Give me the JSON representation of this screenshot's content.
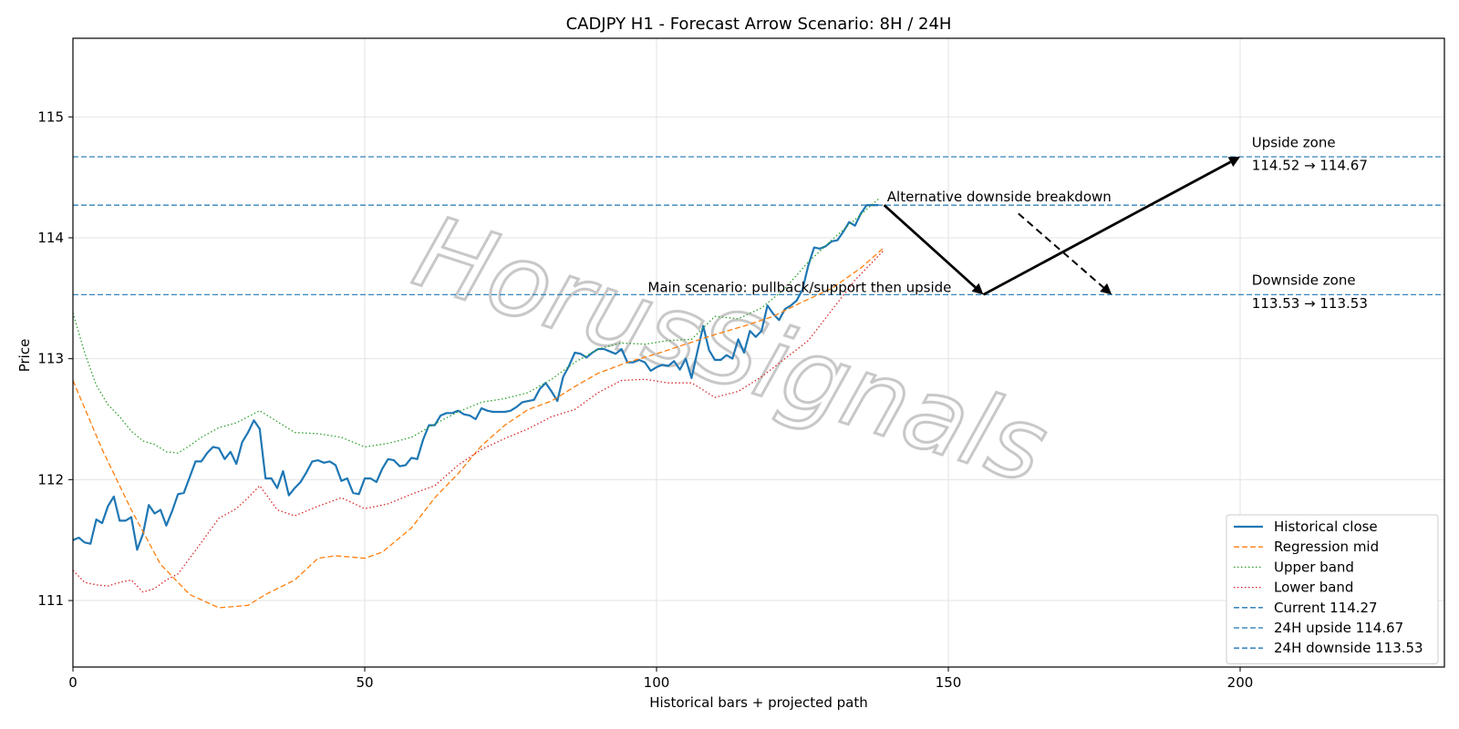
{
  "chart_data": {
    "type": "line",
    "title": "CADJPY H1 - Forecast Arrow Scenario: 8H / 24H",
    "xlabel": "Historical bars + projected path",
    "ylabel": "Price",
    "xlim": [
      0,
      235
    ],
    "ylim": [
      110.45,
      115.65
    ],
    "xticks": [
      0,
      50,
      100,
      150,
      200
    ],
    "yticks": [
      111,
      112,
      113,
      114,
      115
    ],
    "grid": true,
    "legend_position": "lower right",
    "watermark": "HorusSignals",
    "series": [
      {
        "name": "Historical close",
        "style": "solid",
        "color": "#1f77b4",
        "x": [
          0,
          1,
          2,
          3,
          4,
          5,
          6,
          7,
          8,
          9,
          10,
          11,
          12,
          13,
          14,
          15,
          16,
          17,
          18,
          19,
          20,
          21,
          22,
          23,
          24,
          25,
          26,
          27,
          28,
          29,
          30,
          31,
          32,
          33,
          34,
          35,
          36,
          37,
          38,
          39,
          40,
          41,
          42,
          43,
          44,
          45,
          46,
          47,
          48,
          49,
          50,
          51,
          52,
          53,
          54,
          55,
          56,
          57,
          58,
          59,
          60,
          61,
          62,
          63,
          64,
          65,
          66,
          67,
          68,
          69,
          70,
          71,
          72,
          73,
          74,
          75,
          76,
          77,
          78,
          79,
          80,
          81,
          82,
          83,
          84,
          85,
          86,
          87,
          88,
          89,
          90,
          91,
          92,
          93,
          94,
          95,
          96,
          97,
          98,
          99,
          100,
          101,
          102,
          103,
          104,
          105,
          106,
          107,
          108,
          109,
          110,
          111,
          112,
          113,
          114,
          115,
          116,
          117,
          118,
          119,
          120,
          121,
          122,
          123,
          124,
          125,
          126,
          127,
          128,
          129,
          130,
          131,
          132,
          133,
          134,
          135,
          136,
          137,
          138
        ],
        "values": [
          111.5,
          111.52,
          111.48,
          111.47,
          111.67,
          111.64,
          111.78,
          111.86,
          111.66,
          111.66,
          111.69,
          111.42,
          111.55,
          111.79,
          111.72,
          111.75,
          111.62,
          111.74,
          111.88,
          111.89,
          112.02,
          112.15,
          112.15,
          112.22,
          112.27,
          112.26,
          112.17,
          112.23,
          112.13,
          112.31,
          112.39,
          112.49,
          112.42,
          112.01,
          112.01,
          111.93,
          112.07,
          111.87,
          111.93,
          111.98,
          112.06,
          112.15,
          112.16,
          112.14,
          112.15,
          112.12,
          111.99,
          112.01,
          111.89,
          111.88,
          112.01,
          112.01,
          111.98,
          112.09,
          112.17,
          112.16,
          112.11,
          112.12,
          112.18,
          112.17,
          112.33,
          112.45,
          112.45,
          112.53,
          112.55,
          112.55,
          112.57,
          112.54,
          112.53,
          112.5,
          112.59,
          112.57,
          112.56,
          112.56,
          112.56,
          112.57,
          112.6,
          112.64,
          112.65,
          112.66,
          112.75,
          112.8,
          112.73,
          112.65,
          112.85,
          112.94,
          113.05,
          113.04,
          113.01,
          113.05,
          113.08,
          113.08,
          113.06,
          113.04,
          113.08,
          112.97,
          112.97,
          112.99,
          112.97,
          112.9,
          112.93,
          112.95,
          112.94,
          112.98,
          112.91,
          113.0,
          112.84,
          113.06,
          113.27,
          113.07,
          112.99,
          112.99,
          113.03,
          113.0,
          113.16,
          113.05,
          113.23,
          113.18,
          113.23,
          113.44,
          113.37,
          113.32,
          113.41,
          113.44,
          113.48,
          113.57,
          113.77,
          113.92,
          113.91,
          113.93,
          113.97,
          113.98,
          114.05,
          114.13,
          114.1,
          114.2,
          114.27,
          114.27,
          114.27
        ]
      },
      {
        "name": "Regression mid",
        "style": "dashed",
        "color": "#ff7f0e",
        "x": [
          0,
          5,
          10,
          15,
          20,
          25,
          30,
          33,
          38,
          42,
          45,
          50,
          53,
          58,
          62,
          66,
          70,
          74,
          78,
          82,
          86,
          90,
          95,
          100,
          105,
          110,
          115,
          120,
          125,
          130,
          135,
          139
        ],
        "values": [
          112.82,
          112.25,
          111.75,
          111.3,
          111.05,
          110.94,
          110.96,
          111.05,
          111.17,
          111.35,
          111.37,
          111.35,
          111.4,
          111.6,
          111.85,
          112.05,
          112.28,
          112.45,
          112.58,
          112.65,
          112.77,
          112.88,
          112.97,
          113.04,
          113.12,
          113.2,
          113.27,
          113.35,
          113.47,
          113.58,
          113.75,
          113.92
        ]
      },
      {
        "name": "Upper band",
        "style": "dotted",
        "color": "#2ca02c",
        "x": [
          0,
          2,
          4,
          6,
          8,
          10,
          12,
          14,
          16,
          18,
          20,
          22,
          25,
          28,
          30,
          32,
          35,
          38,
          42,
          46,
          50,
          54,
          58,
          62,
          66,
          70,
          74,
          78,
          82,
          86,
          90,
          94,
          98,
          102,
          106,
          110,
          114,
          118,
          122,
          126,
          130,
          134,
          138
        ],
        "values": [
          113.38,
          113.05,
          112.78,
          112.62,
          112.52,
          112.4,
          112.32,
          112.29,
          112.23,
          112.22,
          112.28,
          112.35,
          112.43,
          112.47,
          112.52,
          112.57,
          112.48,
          112.39,
          112.38,
          112.35,
          112.27,
          112.3,
          112.35,
          112.46,
          112.56,
          112.64,
          112.67,
          112.72,
          112.83,
          112.97,
          113.08,
          113.13,
          113.12,
          113.15,
          113.16,
          113.35,
          113.33,
          113.42,
          113.58,
          113.8,
          113.98,
          114.15,
          114.32
        ]
      },
      {
        "name": "Lower band",
        "style": "dotted",
        "color": "#d62728",
        "x": [
          0,
          2,
          4,
          6,
          8,
          10,
          12,
          14,
          16,
          18,
          20,
          22,
          25,
          28,
          30,
          32,
          35,
          38,
          42,
          46,
          50,
          54,
          58,
          62,
          66,
          70,
          74,
          78,
          82,
          86,
          90,
          94,
          98,
          102,
          106,
          110,
          114,
          118,
          122,
          126,
          130,
          134,
          139
        ],
        "values": [
          111.25,
          111.15,
          111.13,
          111.12,
          111.15,
          111.17,
          111.07,
          111.1,
          111.17,
          111.22,
          111.35,
          111.48,
          111.68,
          111.76,
          111.85,
          111.95,
          111.75,
          111.7,
          111.78,
          111.85,
          111.76,
          111.8,
          111.88,
          111.95,
          112.12,
          112.25,
          112.34,
          112.42,
          112.52,
          112.58,
          112.72,
          112.82,
          112.83,
          112.8,
          112.8,
          112.68,
          112.73,
          112.85,
          113.0,
          113.15,
          113.4,
          113.65,
          113.9
        ]
      },
      {
        "name": "Current 114.27",
        "type": "hline",
        "style": "dashed",
        "color": "#1f77b4",
        "value": 114.27
      },
      {
        "name": "24H upside 114.67",
        "type": "hline",
        "style": "dashed",
        "color": "#1f77b4",
        "value": 114.67
      },
      {
        "name": "24H downside 113.53",
        "type": "hline",
        "style": "dashed",
        "color": "#1f77b4",
        "value": 113.53
      }
    ],
    "arrows": [
      {
        "from": [
          139,
          114.27
        ],
        "to": [
          156,
          113.53
        ],
        "style": "solid",
        "color": "#000000"
      },
      {
        "from": [
          156,
          113.53
        ],
        "to": [
          200,
          114.67
        ],
        "style": "solid",
        "color": "#000000"
      },
      {
        "from": [
          162,
          114.2
        ],
        "to": [
          178,
          113.53
        ],
        "style": "dashed",
        "color": "#000000"
      }
    ],
    "annotations": [
      {
        "text": "Main scenario: pullback/support then upside",
        "x": 98.5,
        "y": 113.55
      },
      {
        "text": "Alternative downside breakdown",
        "x": 139.5,
        "y": 114.3
      },
      {
        "text": "Upside zone",
        "x": 202,
        "y": 114.75
      },
      {
        "text": "114.52 → 114.67",
        "x": 202,
        "y": 114.56
      },
      {
        "text": "Downside zone",
        "x": 202,
        "y": 113.61
      },
      {
        "text": "113.53 → 113.53",
        "x": 202,
        "y": 113.42
      }
    ]
  }
}
